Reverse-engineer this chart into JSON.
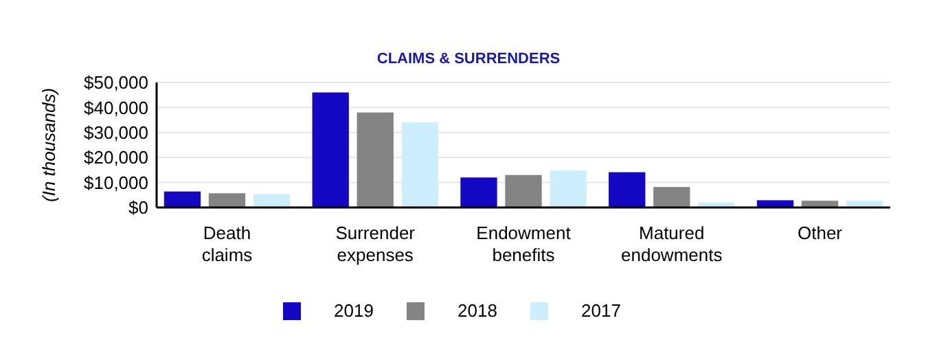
{
  "chart_data": {
    "type": "bar",
    "title": "CLAIMS & SURRENDERS",
    "ylabel": "(In thousands)",
    "categories": [
      "Death claims",
      "Surrender expenses",
      "Endowment benefits",
      "Matured endowments",
      "Other"
    ],
    "series": [
      {
        "name": "2019",
        "color": "#1408c4",
        "values": [
          6400,
          46000,
          12000,
          14100,
          2900
        ]
      },
      {
        "name": "2018",
        "color": "#848484",
        "values": [
          5700,
          38000,
          13000,
          8200,
          2700
        ]
      },
      {
        "name": "2017",
        "color": "#cdeefc",
        "values": [
          5400,
          34000,
          14800,
          2000,
          2700
        ]
      }
    ],
    "ylim": [
      0,
      50000
    ],
    "yticks": [
      {
        "value": 0,
        "label": "$0"
      },
      {
        "value": 10000,
        "label": "$10,000"
      },
      {
        "value": 20000,
        "label": "$20,000"
      },
      {
        "value": 30000,
        "label": "$30,000"
      },
      {
        "value": 40000,
        "label": "$40,000"
      },
      {
        "value": 50000,
        "label": "$50,000"
      }
    ],
    "grid": "y",
    "legend": "bottom"
  }
}
